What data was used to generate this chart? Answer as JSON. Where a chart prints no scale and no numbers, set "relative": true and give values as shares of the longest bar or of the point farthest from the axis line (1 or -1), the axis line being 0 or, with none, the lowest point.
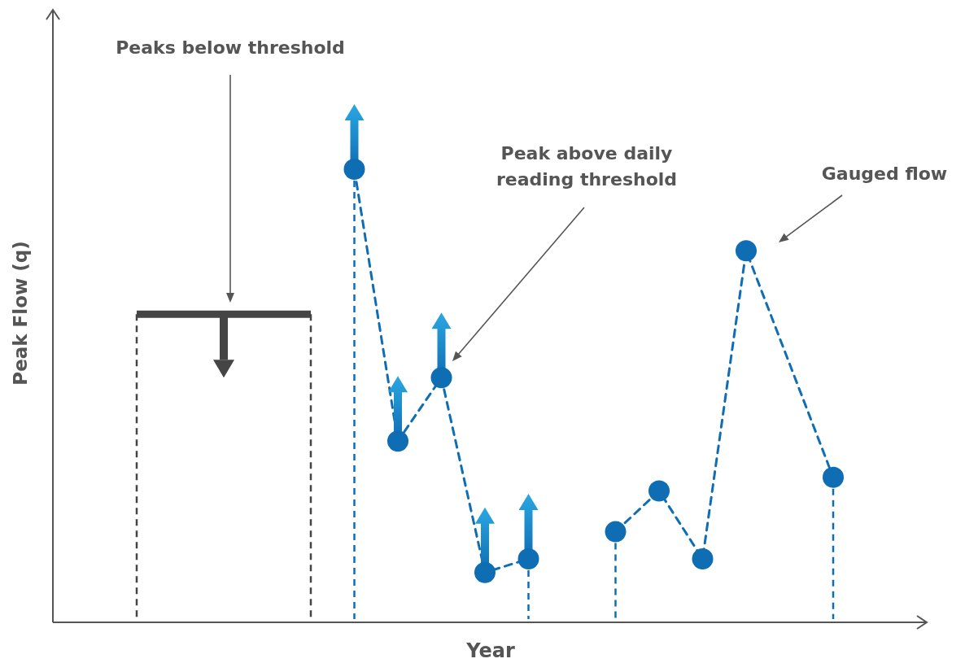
{
  "chart_data": {
    "type": "line",
    "xlabel": "Year",
    "ylabel": "Peak Flow (q)",
    "relative": true,
    "marker": "circle",
    "line_style": "dashed",
    "categories": [
      null,
      null,
      null,
      null,
      null,
      null,
      null,
      null,
      null,
      null,
      null,
      null,
      null,
      null,
      null,
      null,
      null
    ],
    "series": [
      {
        "color": "#454545",
        "marker": "none",
        "line_style": "solid",
        "values": [
          0.68,
          0.68,
          0.68,
          0.68,
          0.68,
          null,
          null,
          null,
          null,
          null,
          null,
          null,
          null,
          null,
          null,
          null,
          null
        ]
      },
      {
        "color": "#0f6db3",
        "values": [
          null,
          null,
          null,
          null,
          null,
          1,
          0.4,
          0.54,
          0.11,
          0.14,
          null,
          null,
          null,
          null,
          null,
          null,
          null
        ]
      },
      {
        "color": "#0f6db3",
        "values": [
          null,
          null,
          null,
          null,
          null,
          null,
          null,
          null,
          null,
          null,
          null,
          0.2,
          0.29,
          0.14,
          0.82,
          null,
          0.32
        ]
      }
    ],
    "annotations": [
      "Peaks below threshold",
      "Peak above daily reading threshold",
      "Gauged flow"
    ]
  }
}
